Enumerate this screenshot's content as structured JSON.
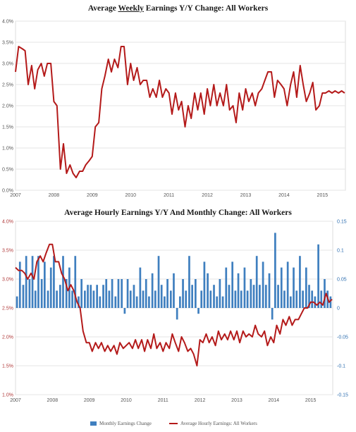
{
  "colors": {
    "line": "#b41a1a",
    "bar": "#3f7fbf",
    "grid": "#e6e6e6"
  },
  "chart_data": [
    {
      "type": "line",
      "title_parts": [
        "Average ",
        "Weekly",
        " Earnings Y/Y Change: All Workers"
      ],
      "title": "Average Weekly Earnings Y/Y Change: All Workers",
      "yticks": [
        "0.0%",
        "0.5%",
        "1.0%",
        "1.5%",
        "2.0%",
        "2.5%",
        "3.0%",
        "3.5%",
        "4.0%"
      ],
      "xticks": [
        "2007",
        "2008",
        "2009",
        "2010",
        "2011",
        "2012",
        "2013",
        "2014",
        "2015"
      ],
      "ylim": [
        0,
        4
      ],
      "xlim": [
        2007.0,
        2015.6
      ],
      "series": [
        {
          "x": [
            2007.0,
            2007.08,
            2007.17,
            2007.25,
            2007.33,
            2007.42,
            2007.5,
            2007.58,
            2007.67,
            2007.75,
            2007.83,
            2007.92,
            2008.0,
            2008.08,
            2008.17,
            2008.25,
            2008.33,
            2008.42,
            2008.5,
            2008.58,
            2008.67,
            2008.75,
            2008.83,
            2008.92,
            2009.0,
            2009.08,
            2009.17,
            2009.25,
            2009.33,
            2009.42,
            2009.5,
            2009.58,
            2009.67,
            2009.75,
            2009.83,
            2009.92,
            2010.0,
            2010.08,
            2010.17,
            2010.25,
            2010.33,
            2010.42,
            2010.5,
            2010.58,
            2010.67,
            2010.75,
            2010.83,
            2010.92,
            2011.0,
            2011.08,
            2011.17,
            2011.25,
            2011.33,
            2011.42,
            2011.5,
            2011.58,
            2011.67,
            2011.75,
            2011.83,
            2011.92,
            2012.0,
            2012.08,
            2012.17,
            2012.25,
            2012.33,
            2012.42,
            2012.5,
            2012.58,
            2012.67,
            2012.75,
            2012.83,
            2012.92,
            2013.0,
            2013.08,
            2013.17,
            2013.25,
            2013.33,
            2013.42,
            2013.5,
            2013.58,
            2013.67,
            2013.75,
            2013.83,
            2013.92,
            2014.0,
            2014.08,
            2014.17,
            2014.25,
            2014.33,
            2014.42,
            2014.5,
            2014.58,
            2014.67,
            2014.75,
            2014.83,
            2014.92,
            2015.0,
            2015.08,
            2015.17,
            2015.25,
            2015.33,
            2015.42,
            2015.5,
            2015.58
          ],
          "values": [
            2.8,
            3.4,
            3.35,
            3.3,
            2.5,
            2.95,
            2.4,
            2.85,
            3.0,
            2.7,
            3.0,
            3.0,
            2.1,
            2.0,
            0.5,
            1.1,
            0.4,
            0.6,
            0.4,
            0.3,
            0.45,
            0.45,
            0.6,
            0.7,
            0.8,
            1.5,
            1.6,
            2.4,
            2.7,
            3.1,
            2.8,
            3.1,
            2.9,
            3.4,
            3.4,
            2.5,
            3.0,
            2.6,
            2.9,
            2.5,
            2.6,
            2.6,
            2.2,
            2.4,
            2.2,
            2.6,
            2.2,
            2.4,
            2.3,
            1.8,
            2.3,
            1.9,
            2.1,
            1.5,
            2.0,
            1.7,
            2.3,
            1.9,
            2.3,
            1.8,
            2.4,
            2.0,
            2.5,
            2.0,
            2.3,
            2.0,
            2.5,
            1.9,
            2.0,
            1.6,
            2.3,
            1.9,
            2.4,
            2.1,
            2.3,
            2.0,
            2.3,
            2.4,
            2.6,
            2.8,
            2.8,
            2.2,
            2.6,
            2.5,
            2.4,
            2.0,
            2.5,
            2.8,
            2.2,
            2.95,
            2.5,
            2.1,
            2.3,
            2.55,
            1.9,
            2.0,
            2.3,
            2.3,
            2.35,
            2.3,
            2.35,
            2.3,
            2.35,
            2.3
          ]
        }
      ]
    },
    {
      "type": "bar+line",
      "title": "Average Hourly Earnings Y/Y And Monthly Change: All Workers",
      "yticks_left": [
        "1.0%",
        "1.5%",
        "2.0%",
        "2.5%",
        "3.0%",
        "3.5%",
        "4.0%"
      ],
      "yticks_right": [
        "-0.15",
        "-0.1",
        "-0.05",
        "0",
        "0.05",
        "0.1",
        "0.15"
      ],
      "xticks": [
        "2007",
        "2008",
        "2009",
        "2010",
        "2011",
        "2012",
        "2013",
        "2014",
        "2015"
      ],
      "ylim_left": [
        1.0,
        4.0
      ],
      "ylim_right": [
        -0.15,
        0.15
      ],
      "xlim": [
        2007.0,
        2015.6
      ],
      "legend": [
        "Monthly Earnings Change",
        "Average Hourly Earnings: All Workers"
      ],
      "series": [
        {
          "name": "Monthly Earnings Change",
          "axis": "right",
          "x": [
            2007.04,
            2007.12,
            2007.21,
            2007.29,
            2007.38,
            2007.46,
            2007.54,
            2007.62,
            2007.71,
            2007.79,
            2007.88,
            2007.96,
            2008.04,
            2008.12,
            2008.21,
            2008.29,
            2008.38,
            2008.46,
            2008.54,
            2008.62,
            2008.71,
            2008.79,
            2008.88,
            2008.96,
            2009.04,
            2009.12,
            2009.21,
            2009.29,
            2009.38,
            2009.46,
            2009.54,
            2009.62,
            2009.71,
            2009.79,
            2009.88,
            2009.96,
            2010.04,
            2010.12,
            2010.21,
            2010.29,
            2010.38,
            2010.46,
            2010.54,
            2010.62,
            2010.71,
            2010.79,
            2010.88,
            2010.96,
            2011.04,
            2011.12,
            2011.21,
            2011.29,
            2011.38,
            2011.46,
            2011.54,
            2011.62,
            2011.71,
            2011.79,
            2011.88,
            2011.96,
            2012.04,
            2012.12,
            2012.21,
            2012.29,
            2012.38,
            2012.46,
            2012.54,
            2012.62,
            2012.71,
            2012.79,
            2012.88,
            2012.96,
            2013.04,
            2013.12,
            2013.21,
            2013.29,
            2013.38,
            2013.46,
            2013.54,
            2013.62,
            2013.71,
            2013.79,
            2013.88,
            2013.96,
            2014.04,
            2014.12,
            2014.21,
            2014.29,
            2014.38,
            2014.46,
            2014.54,
            2014.62,
            2014.71,
            2014.79,
            2014.88,
            2014.96,
            2015.04,
            2015.12,
            2015.21,
            2015.29,
            2015.38,
            2015.46,
            2015.54
          ],
          "values": [
            0.02,
            0.08,
            0.04,
            0.09,
            0.05,
            0.09,
            0.03,
            0.09,
            0.05,
            0.08,
            0.03,
            0.07,
            0.09,
            0.03,
            0.04,
            0.09,
            0.05,
            0.07,
            0.03,
            0.09,
            0.02,
            0.05,
            0.03,
            0.04,
            0.04,
            0.03,
            0.04,
            0.02,
            0.04,
            0.05,
            0.03,
            0.05,
            0.02,
            0.05,
            0.05,
            -0.01,
            0.05,
            0.03,
            0.04,
            0.02,
            0.07,
            0.03,
            0.05,
            0.02,
            0.06,
            0.03,
            0.09,
            0.04,
            0.02,
            0.05,
            0.03,
            0.06,
            -0.02,
            0.02,
            0.05,
            0.03,
            0.09,
            0.04,
            0.05,
            -0.01,
            0.03,
            0.08,
            0.06,
            0.03,
            0.04,
            0.02,
            0.05,
            0.02,
            0.07,
            0.04,
            0.08,
            0.03,
            0.06,
            0.03,
            0.07,
            0.03,
            0.05,
            0.04,
            0.09,
            0.04,
            0.08,
            0.04,
            0.06,
            -0.02,
            0.13,
            0.04,
            0.07,
            0.03,
            0.08,
            0.02,
            0.07,
            0.03,
            0.09,
            0.03,
            0.07,
            0.04,
            0.03,
            0.02,
            0.11,
            0.03,
            0.05,
            0.03,
            0.02
          ]
        },
        {
          "name": "Average Hourly Earnings: All Workers",
          "axis": "left",
          "x": [
            2007.0,
            2007.08,
            2007.17,
            2007.25,
            2007.33,
            2007.42,
            2007.5,
            2007.58,
            2007.67,
            2007.75,
            2007.83,
            2007.92,
            2008.0,
            2008.08,
            2008.17,
            2008.25,
            2008.33,
            2008.42,
            2008.5,
            2008.58,
            2008.67,
            2008.75,
            2008.83,
            2008.92,
            2009.0,
            2009.08,
            2009.17,
            2009.25,
            2009.33,
            2009.42,
            2009.5,
            2009.58,
            2009.67,
            2009.75,
            2009.83,
            2009.92,
            2010.0,
            2010.08,
            2010.17,
            2010.25,
            2010.33,
            2010.42,
            2010.5,
            2010.58,
            2010.67,
            2010.75,
            2010.83,
            2010.92,
            2011.0,
            2011.08,
            2011.17,
            2011.25,
            2011.33,
            2011.42,
            2011.5,
            2011.58,
            2011.67,
            2011.75,
            2011.83,
            2011.92,
            2012.0,
            2012.08,
            2012.17,
            2012.25,
            2012.33,
            2012.42,
            2012.5,
            2012.58,
            2012.67,
            2012.75,
            2012.83,
            2012.92,
            2013.0,
            2013.08,
            2013.17,
            2013.25,
            2013.33,
            2013.42,
            2013.5,
            2013.58,
            2013.67,
            2013.75,
            2013.83,
            2013.92,
            2014.0,
            2014.08,
            2014.17,
            2014.25,
            2014.33,
            2014.42,
            2014.5,
            2014.58,
            2014.67,
            2014.75,
            2014.83,
            2014.92,
            2015.0,
            2015.08,
            2015.17,
            2015.25,
            2015.33,
            2015.42,
            2015.5,
            2015.58
          ],
          "values": [
            3.2,
            3.15,
            3.15,
            3.1,
            3.0,
            3.1,
            3.0,
            3.3,
            3.4,
            3.3,
            3.45,
            3.6,
            3.6,
            3.3,
            3.3,
            3.1,
            3.0,
            2.8,
            2.9,
            2.8,
            2.6,
            2.5,
            2.1,
            1.9,
            1.9,
            1.75,
            1.9,
            1.8,
            1.9,
            1.75,
            1.85,
            1.75,
            1.85,
            1.7,
            1.9,
            1.8,
            1.85,
            1.9,
            1.8,
            1.95,
            1.8,
            1.95,
            1.75,
            1.95,
            1.8,
            2.05,
            1.8,
            1.9,
            1.75,
            1.9,
            1.8,
            2.05,
            1.9,
            1.75,
            2.0,
            1.9,
            1.75,
            1.8,
            1.7,
            1.5,
            1.95,
            1.9,
            2.05,
            1.9,
            2.0,
            1.85,
            2.1,
            1.95,
            2.05,
            1.95,
            2.1,
            1.95,
            2.1,
            1.9,
            2.1,
            2.0,
            2.05,
            2.0,
            2.2,
            2.05,
            2.0,
            2.1,
            1.85,
            2.0,
            1.9,
            2.2,
            2.05,
            2.3,
            2.2,
            2.35,
            2.2,
            2.3,
            2.3,
            2.4,
            2.5,
            2.5,
            2.6,
            2.6,
            2.55,
            2.6,
            2.55,
            2.75,
            2.6,
            2.65
          ]
        }
      ]
    }
  ]
}
